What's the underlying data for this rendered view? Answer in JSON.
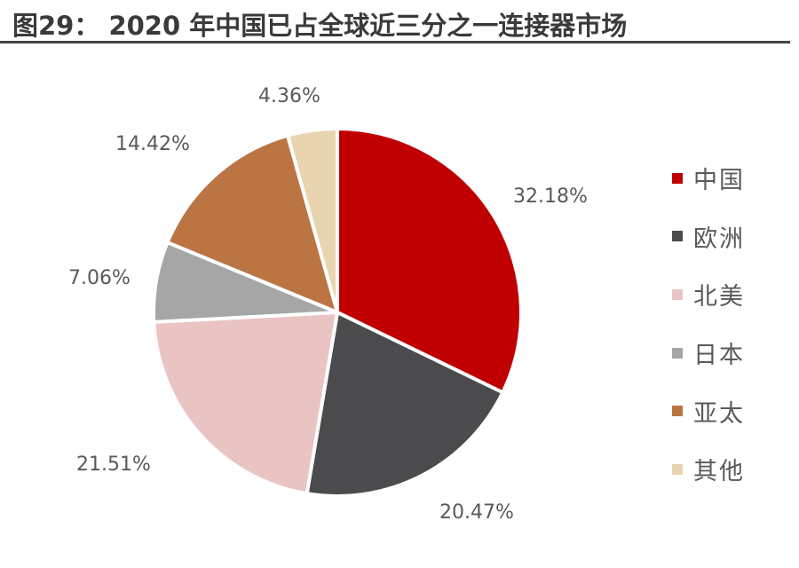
{
  "header": {
    "title": "图29：  2020 年中国已占全球近三分之一连接器市场"
  },
  "chart_data": {
    "type": "pie",
    "title": "2020 年中国已占全球近三分之一连接器市场",
    "figure_label": "图29",
    "categories": [
      "中国",
      "欧洲",
      "北美",
      "日本",
      "亚太",
      "其他"
    ],
    "values": [
      32.18,
      20.47,
      21.51,
      7.06,
      14.42,
      4.36
    ],
    "labels": [
      "32.18%",
      "20.47%",
      "21.51%",
      "7.06%",
      "14.42%",
      "4.36%"
    ],
    "colors": [
      "#C00000",
      "#4B4B4D",
      "#EAC3C3",
      "#A6A6A6",
      "#BA7543",
      "#E8D5B0"
    ],
    "start_angle_deg": 0,
    "direction": "clockwise",
    "legend_position": "right",
    "unit": "%"
  }
}
